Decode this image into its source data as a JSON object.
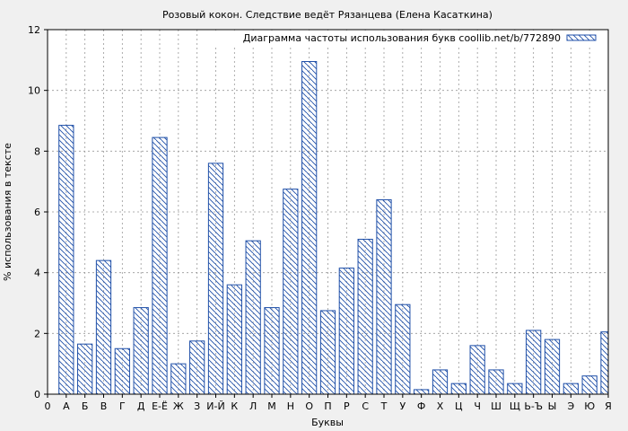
{
  "chart_data": {
    "type": "bar",
    "title": "Розовый кокон. Следствие ведёт Рязанцева (Елена Касаткина)",
    "xlabel": "Буквы",
    "ylabel": "% использования в тексте",
    "ylim": [
      0,
      12
    ],
    "yticks": [
      0,
      2,
      4,
      6,
      8,
      10,
      12
    ],
    "grid": true,
    "legend_position": "top-right",
    "colors": {
      "bar_stroke": "#1f4fa8",
      "hatch": "#1f4fa8",
      "background": "#f0f0f0",
      "plot_background": "#ffffff",
      "grid": "#999999"
    },
    "x_tick_labels": [
      "0",
      "А",
      "Б",
      "В",
      "Г",
      "Д",
      "Е-Ё",
      "Ж",
      "З",
      "И-Й",
      "К",
      "Л",
      "М",
      "Н",
      "О",
      "П",
      "Р",
      "С",
      "Т",
      "У",
      "Ф",
      "Х",
      "Ц",
      "Ч",
      "Ш",
      "Щ",
      "Ь-Ъ",
      "Ы",
      "Э",
      "Ю",
      "Я"
    ],
    "series": [
      {
        "name": "Диаграмма частоты использования букв coollib.net/b/772890",
        "categories": [
          "А",
          "Б",
          "В",
          "Г",
          "Д",
          "Е-Ё",
          "Ж",
          "З",
          "И-Й",
          "К",
          "Л",
          "М",
          "Н",
          "О",
          "П",
          "Р",
          "С",
          "Т",
          "У",
          "Ф",
          "Х",
          "Ц",
          "Ч",
          "Ш",
          "Щ",
          "Ь-Ъ",
          "Ы",
          "Э",
          "Ю",
          "Я"
        ],
        "values": [
          8.85,
          1.65,
          4.4,
          1.5,
          2.85,
          8.45,
          1.0,
          1.75,
          7.6,
          3.6,
          5.05,
          2.85,
          6.75,
          10.95,
          2.75,
          4.15,
          5.1,
          6.4,
          2.95,
          0.15,
          0.8,
          0.35,
          1.6,
          0.8,
          0.35,
          2.1,
          1.8,
          0.35,
          0.6,
          2.05
        ]
      }
    ]
  }
}
